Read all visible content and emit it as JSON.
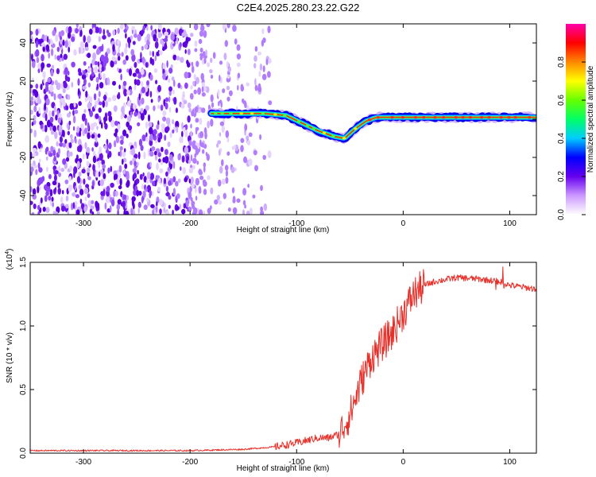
{
  "page": {
    "title": "C2E4.2025.280.23.22.G22"
  },
  "chart_data": [
    {
      "type": "heatmap",
      "xlabel": "Height of straight line (km)",
      "ylabel": "Frequency (Hz)",
      "xlim": [
        -350,
        125
      ],
      "ylim": [
        -50,
        50
      ],
      "xticks": [
        -300,
        -200,
        -100,
        0,
        100
      ],
      "yticks": [
        -40,
        -20,
        0,
        20,
        40
      ],
      "colorbar": {
        "label": "Normalized spectral amplitude",
        "range": [
          0,
          1
        ],
        "ticks": [
          "0.0",
          "0.2",
          "0.4",
          "0.6",
          "0.8"
        ],
        "colors": [
          "#ffffff",
          "#cc99ff",
          "#6600ee",
          "#0000ff",
          "#00ccff",
          "#00ff66",
          "#66ff00",
          "#ffff00",
          "#ff8800",
          "#ff0000",
          "#ff00aa"
        ]
      },
      "trace": {
        "start_x": -180,
        "points": [
          [
            -180,
            3
          ],
          [
            -150,
            3
          ],
          [
            -130,
            3
          ],
          [
            -110,
            2
          ],
          [
            -95,
            -2
          ],
          [
            -80,
            -6
          ],
          [
            -65,
            -9
          ],
          [
            -55,
            -10
          ],
          [
            -45,
            -5
          ],
          [
            -35,
            -1
          ],
          [
            -25,
            1
          ],
          [
            -10,
            1
          ],
          [
            0,
            1
          ],
          [
            50,
            1
          ],
          [
            125,
            1
          ]
        ]
      },
      "grid": false
    },
    {
      "type": "line",
      "xlabel": "Height of straight line (km)",
      "ylabel": "SNR (10 * v/v)",
      "y_multiplier": "(x10",
      "y_multiplier_exp": "4",
      "xlim": [
        -350,
        125
      ],
      "ylim": [
        0,
        1.5
      ],
      "xticks": [
        -300,
        -200,
        -100,
        0,
        100
      ],
      "yticks": [
        "0.0",
        "0.5",
        "1.0",
        "1.5"
      ],
      "series": [
        {
          "color": "#e8302a",
          "x": [
            -350,
            -300,
            -250,
            -200,
            -150,
            -120,
            -100,
            -90,
            -80,
            -70,
            -60,
            -50,
            -40,
            -30,
            -20,
            -10,
            0,
            10,
            20,
            30,
            50,
            70,
            90,
            100,
            125
          ],
          "y": [
            0.02,
            0.02,
            0.02,
            0.02,
            0.03,
            0.05,
            0.08,
            0.1,
            0.12,
            0.12,
            0.15,
            0.3,
            0.55,
            0.75,
            0.85,
            0.95,
            1.1,
            1.25,
            1.32,
            1.35,
            1.38,
            1.37,
            1.35,
            1.32,
            1.29
          ]
        }
      ],
      "grid": false
    }
  ]
}
